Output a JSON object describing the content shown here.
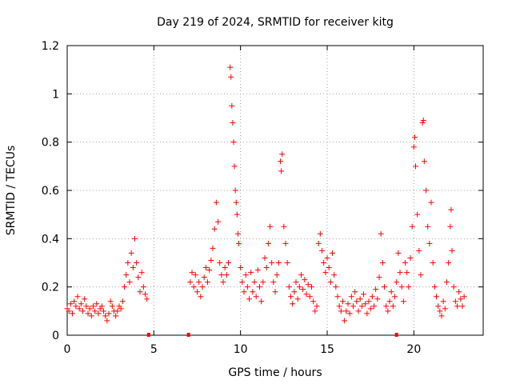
{
  "chart_data": {
    "type": "scatter",
    "title": "Day 219 of 2024, SRMTID for receiver kitg",
    "xlabel": "GPS time / hours",
    "ylabel": "SRMTID / TECUs",
    "xlim": [
      0,
      24
    ],
    "ylim": [
      0,
      1.2
    ],
    "x_ticks": [
      0,
      5,
      10,
      15,
      20
    ],
    "y_ticks": [
      0,
      0.2,
      0.4,
      0.6,
      0.8,
      1,
      1.2
    ],
    "x_tick_labels": [
      "0",
      "5",
      "10",
      "15",
      "20"
    ],
    "y_tick_labels": [
      "0",
      "0.2",
      "0.4",
      "0.6",
      "0.8",
      "1",
      "1.2"
    ],
    "grid": true,
    "marker": "plus",
    "color": "#ff0000",
    "series": [
      {
        "name": "SRMTID",
        "points": [
          [
            0.0,
            0.11
          ],
          [
            0.1,
            0.1
          ],
          [
            0.2,
            0.13
          ],
          [
            0.3,
            0.09
          ],
          [
            0.4,
            0.14
          ],
          [
            0.5,
            0.12
          ],
          [
            0.6,
            0.16
          ],
          [
            0.7,
            0.11
          ],
          [
            0.8,
            0.13
          ],
          [
            0.9,
            0.1
          ],
          [
            1.0,
            0.15
          ],
          [
            1.1,
            0.12
          ],
          [
            1.2,
            0.09
          ],
          [
            1.3,
            0.11
          ],
          [
            1.4,
            0.08
          ],
          [
            1.5,
            0.12
          ],
          [
            1.6,
            0.1
          ],
          [
            1.7,
            0.13
          ],
          [
            1.8,
            0.09
          ],
          [
            1.9,
            0.11
          ],
          [
            2.0,
            0.12
          ],
          [
            2.1,
            0.1
          ],
          [
            2.2,
            0.08
          ],
          [
            2.3,
            0.06
          ],
          [
            2.4,
            0.09
          ],
          [
            2.5,
            0.14
          ],
          [
            2.6,
            0.12
          ],
          [
            2.7,
            0.1
          ],
          [
            2.8,
            0.08
          ],
          [
            2.9,
            0.1
          ],
          [
            3.0,
            0.12
          ],
          [
            3.1,
            0.11
          ],
          [
            3.2,
            0.14
          ],
          [
            3.3,
            0.2
          ],
          [
            3.4,
            0.25
          ],
          [
            3.5,
            0.3
          ],
          [
            3.6,
            0.22
          ],
          [
            3.7,
            0.34
          ],
          [
            3.8,
            0.28
          ],
          [
            3.9,
            0.4
          ],
          [
            4.0,
            0.3
          ],
          [
            4.1,
            0.24
          ],
          [
            4.2,
            0.18
          ],
          [
            4.3,
            0.26
          ],
          [
            4.4,
            0.2
          ],
          [
            4.5,
            0.17
          ],
          [
            4.6,
            0.15
          ],
          [
            7.1,
            0.22
          ],
          [
            7.2,
            0.26
          ],
          [
            7.3,
            0.2
          ],
          [
            7.4,
            0.25
          ],
          [
            7.5,
            0.18
          ],
          [
            7.6,
            0.22
          ],
          [
            7.7,
            0.16
          ],
          [
            7.8,
            0.2
          ],
          [
            7.9,
            0.24
          ],
          [
            8.0,
            0.28
          ],
          [
            8.1,
            0.22
          ],
          [
            8.2,
            0.27
          ],
          [
            8.3,
            0.31
          ],
          [
            8.4,
            0.36
          ],
          [
            8.5,
            0.44
          ],
          [
            8.6,
            0.55
          ],
          [
            8.7,
            0.47
          ],
          [
            8.8,
            0.3
          ],
          [
            8.9,
            0.25
          ],
          [
            9.0,
            0.22
          ],
          [
            9.1,
            0.28
          ],
          [
            9.2,
            0.25
          ],
          [
            9.3,
            0.3
          ],
          [
            9.4,
            1.11
          ],
          [
            9.45,
            1.07
          ],
          [
            9.5,
            0.95
          ],
          [
            9.55,
            0.88
          ],
          [
            9.6,
            0.8
          ],
          [
            9.65,
            0.7
          ],
          [
            9.7,
            0.6
          ],
          [
            9.75,
            0.55
          ],
          [
            9.8,
            0.5
          ],
          [
            9.85,
            0.42
          ],
          [
            9.9,
            0.38
          ],
          [
            10.0,
            0.28
          ],
          [
            10.1,
            0.22
          ],
          [
            10.2,
            0.18
          ],
          [
            10.3,
            0.25
          ],
          [
            10.4,
            0.2
          ],
          [
            10.5,
            0.15
          ],
          [
            10.6,
            0.26
          ],
          [
            10.7,
            0.18
          ],
          [
            10.8,
            0.22
          ],
          [
            10.9,
            0.16
          ],
          [
            11.0,
            0.27
          ],
          [
            11.1,
            0.2
          ],
          [
            11.2,
            0.14
          ],
          [
            11.3,
            0.22
          ],
          [
            11.4,
            0.32
          ],
          [
            11.5,
            0.28
          ],
          [
            11.6,
            0.38
          ],
          [
            11.7,
            0.45
          ],
          [
            11.8,
            0.3
          ],
          [
            11.9,
            0.22
          ],
          [
            12.0,
            0.18
          ],
          [
            12.1,
            0.25
          ],
          [
            12.2,
            0.3
          ],
          [
            12.3,
            0.72
          ],
          [
            12.35,
            0.68
          ],
          [
            12.4,
            0.75
          ],
          [
            12.5,
            0.45
          ],
          [
            12.6,
            0.38
          ],
          [
            12.7,
            0.3
          ],
          [
            12.8,
            0.2
          ],
          [
            12.9,
            0.16
          ],
          [
            13.0,
            0.13
          ],
          [
            13.1,
            0.18
          ],
          [
            13.2,
            0.22
          ],
          [
            13.3,
            0.15
          ],
          [
            13.4,
            0.2
          ],
          [
            13.5,
            0.25
          ],
          [
            13.6,
            0.19
          ],
          [
            13.7,
            0.23
          ],
          [
            13.8,
            0.17
          ],
          [
            13.9,
            0.21
          ],
          [
            14.0,
            0.16
          ],
          [
            14.1,
            0.2
          ],
          [
            14.2,
            0.14
          ],
          [
            14.3,
            0.1
          ],
          [
            14.4,
            0.12
          ],
          [
            14.5,
            0.38
          ],
          [
            14.6,
            0.42
          ],
          [
            14.7,
            0.35
          ],
          [
            14.8,
            0.3
          ],
          [
            14.9,
            0.26
          ],
          [
            15.0,
            0.32
          ],
          [
            15.1,
            0.28
          ],
          [
            15.2,
            0.22
          ],
          [
            15.3,
            0.34
          ],
          [
            15.4,
            0.25
          ],
          [
            15.5,
            0.2
          ],
          [
            15.6,
            0.16
          ],
          [
            15.7,
            0.12
          ],
          [
            15.8,
            0.1
          ],
          [
            15.9,
            0.14
          ],
          [
            16.0,
            0.06
          ],
          [
            16.1,
            0.1
          ],
          [
            16.2,
            0.13
          ],
          [
            16.3,
            0.09
          ],
          [
            16.4,
            0.16
          ],
          [
            16.5,
            0.12
          ],
          [
            16.6,
            0.18
          ],
          [
            16.7,
            0.14
          ],
          [
            16.8,
            0.1
          ],
          [
            16.9,
            0.15
          ],
          [
            17.0,
            0.12
          ],
          [
            17.1,
            0.17
          ],
          [
            17.2,
            0.13
          ],
          [
            17.3,
            0.09
          ],
          [
            17.4,
            0.14
          ],
          [
            17.5,
            0.11
          ],
          [
            17.6,
            0.16
          ],
          [
            17.7,
            0.12
          ],
          [
            17.8,
            0.19
          ],
          [
            17.9,
            0.15
          ],
          [
            18.0,
            0.24
          ],
          [
            18.1,
            0.42
          ],
          [
            18.2,
            0.3
          ],
          [
            18.3,
            0.2
          ],
          [
            18.4,
            0.12
          ],
          [
            18.5,
            0.1
          ],
          [
            18.6,
            0.14
          ],
          [
            18.7,
            0.18
          ],
          [
            18.8,
            0.12
          ],
          [
            18.9,
            0.16
          ],
          [
            19.0,
            0.22
          ],
          [
            19.1,
            0.34
          ],
          [
            19.2,
            0.26
          ],
          [
            19.3,
            0.2
          ],
          [
            19.4,
            0.14
          ],
          [
            19.5,
            0.3
          ],
          [
            19.6,
            0.26
          ],
          [
            19.7,
            0.2
          ],
          [
            19.8,
            0.32
          ],
          [
            19.9,
            0.45
          ],
          [
            20.0,
            0.78
          ],
          [
            20.05,
            0.82
          ],
          [
            20.1,
            0.7
          ],
          [
            20.2,
            0.5
          ],
          [
            20.3,
            0.35
          ],
          [
            20.4,
            0.25
          ],
          [
            20.5,
            0.88
          ],
          [
            20.55,
            0.89
          ],
          [
            20.6,
            0.72
          ],
          [
            20.7,
            0.6
          ],
          [
            20.8,
            0.45
          ],
          [
            20.9,
            0.38
          ],
          [
            21.0,
            0.55
          ],
          [
            21.1,
            0.3
          ],
          [
            21.2,
            0.2
          ],
          [
            21.3,
            0.16
          ],
          [
            21.4,
            0.12
          ],
          [
            21.5,
            0.1
          ],
          [
            21.6,
            0.08
          ],
          [
            21.7,
            0.14
          ],
          [
            21.8,
            0.11
          ],
          [
            21.9,
            0.22
          ],
          [
            22.0,
            0.3
          ],
          [
            22.1,
            0.45
          ],
          [
            22.15,
            0.52
          ],
          [
            22.2,
            0.35
          ],
          [
            22.3,
            0.2
          ],
          [
            22.4,
            0.14
          ],
          [
            22.5,
            0.12
          ],
          [
            22.6,
            0.18
          ],
          [
            22.7,
            0.15
          ],
          [
            22.8,
            0.12
          ],
          [
            22.9,
            0.16
          ]
        ]
      }
    ],
    "gap_markers_x": [
      4.7,
      7.0,
      19.0
    ]
  }
}
